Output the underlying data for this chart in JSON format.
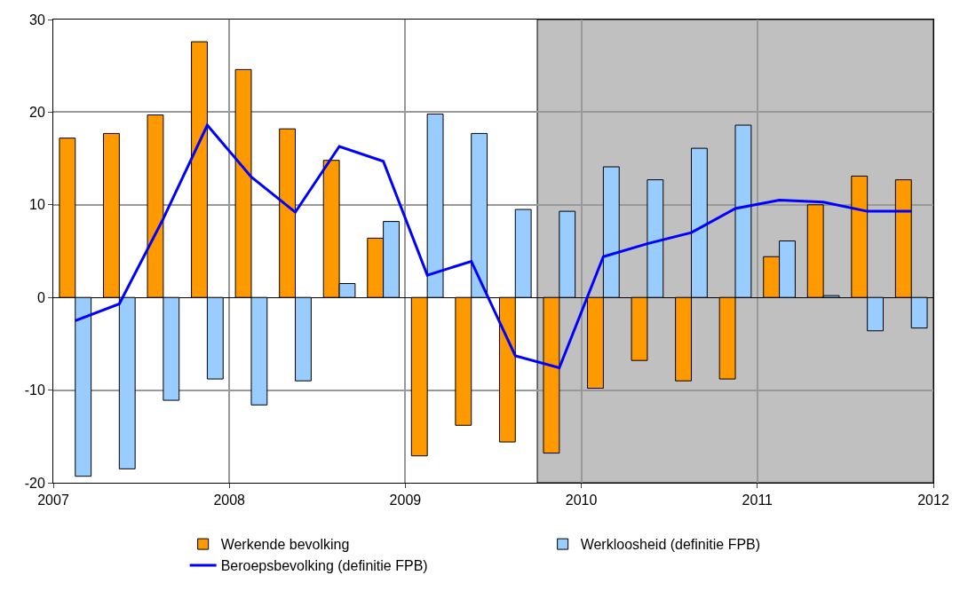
{
  "chart_data": {
    "type": "bar",
    "x": [
      2007.125,
      2007.375,
      2007.625,
      2007.875,
      2008.125,
      2008.375,
      2008.625,
      2008.875,
      2009.125,
      2009.375,
      2009.625,
      2009.875,
      2010.125,
      2010.375,
      2010.625,
      2010.875,
      2011.125,
      2011.375,
      2011.625,
      2011.875
    ],
    "series": [
      {
        "name": "Werkende bevolking",
        "color": "#ff9900",
        "values": [
          17.2,
          17.7,
          19.7,
          27.6,
          24.6,
          18.2,
          14.8,
          6.4,
          -17.1,
          -13.8,
          -15.6,
          -16.8,
          -9.8,
          -6.8,
          -9.0,
          -8.8,
          4.4,
          10.0,
          13.1,
          12.7
        ]
      },
      {
        "name": "Werkloosheid (definitie FPB)",
        "color": "#99ccff",
        "values": [
          -19.3,
          -18.5,
          -11.1,
          -8.8,
          -11.6,
          -9.0,
          1.5,
          8.2,
          19.8,
          17.7,
          9.5,
          9.3,
          14.1,
          12.7,
          16.1,
          18.6,
          6.1,
          0.2,
          -3.6,
          -3.3
        ]
      },
      {
        "name": "Beroepsbevolking (definitie FPB)",
        "type": "line",
        "color": "#0000ff",
        "values": [
          -2.5,
          -0.7,
          8.5,
          18.6,
          13.0,
          9.2,
          16.3,
          14.7,
          2.4,
          3.9,
          -6.3,
          -7.6,
          4.4,
          5.8,
          7.0,
          9.6,
          10.5,
          10.3,
          9.3,
          9.3
        ]
      }
    ],
    "xlim": [
      2007,
      2012
    ],
    "xticks": [
      2007,
      2008,
      2009,
      2010,
      2011,
      2012
    ],
    "ylim": [
      -20,
      30
    ],
    "yticks": [
      -20,
      -10,
      0,
      10,
      20,
      30
    ],
    "bands": [
      {
        "axis": "x",
        "from": 2009.75,
        "to": 2012,
        "color": "#c0c0c0"
      }
    ],
    "grid": true,
    "legend": "bottom",
    "marker": "none",
    "line_style": "solid"
  }
}
